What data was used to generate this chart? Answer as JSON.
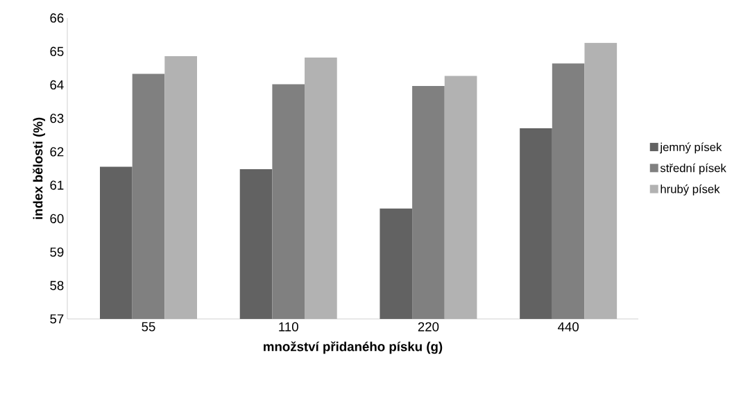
{
  "chart_data": {
    "type": "bar",
    "xlabel": "množství přidaného písku (g)",
    "ylabel": "index bělosti (%)",
    "categories": [
      "55",
      "110",
      "220",
      "440"
    ],
    "series": [
      {
        "name": "jemný písek",
        "color": "#626262",
        "values": [
          61.55,
          61.48,
          60.3,
          62.7
        ]
      },
      {
        "name": "střední písek",
        "color": "#808080",
        "values": [
          64.33,
          64.02,
          63.97,
          64.64
        ]
      },
      {
        "name": "hrubý písek",
        "color": "#b2b2b2",
        "values": [
          64.86,
          64.82,
          64.27,
          65.26
        ]
      }
    ],
    "ylim": [
      57,
      66
    ],
    "yticks": [
      57,
      58,
      59,
      60,
      61,
      62,
      63,
      64,
      65,
      66
    ],
    "grid": false,
    "legend": "right"
  }
}
